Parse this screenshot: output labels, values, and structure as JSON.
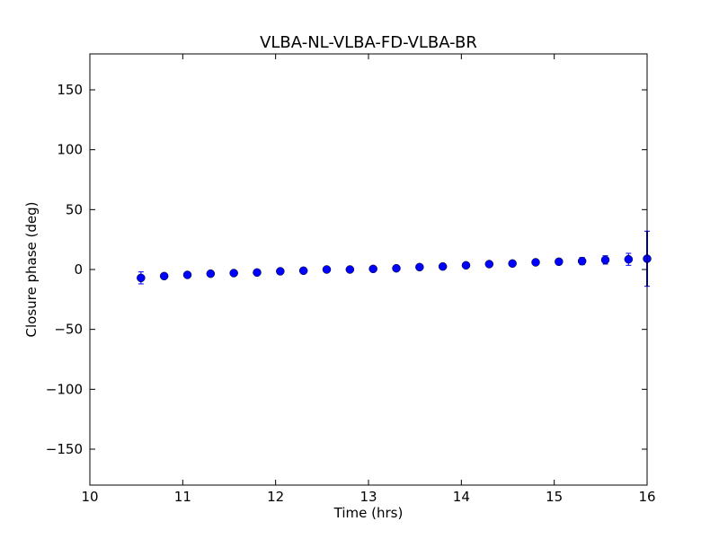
{
  "chart_data": {
    "type": "scatter",
    "title": "VLBA-NL-VLBA-FD-VLBA-BR",
    "xlabel": "Time (hrs)",
    "ylabel": "Closure phase (deg)",
    "xlim": [
      10,
      16
    ],
    "ylim": [
      -180,
      180
    ],
    "xticks": [
      10,
      11,
      12,
      13,
      14,
      15,
      16
    ],
    "xtick_labels": [
      "10",
      "11",
      "12",
      "13",
      "14",
      "15",
      "16"
    ],
    "yticks": [
      -150,
      -100,
      -50,
      0,
      50,
      100,
      150
    ],
    "ytick_labels": [
      "−150",
      "−100",
      "−50",
      "0",
      "50",
      "100",
      "150"
    ],
    "grid": false,
    "error_bars": true,
    "marker": "circle",
    "color": "#0000ff",
    "points": [
      {
        "x": 10.55,
        "y": -7,
        "err": 5
      },
      {
        "x": 10.8,
        "y": -5.5,
        "err": 2
      },
      {
        "x": 11.05,
        "y": -4.5,
        "err": 2
      },
      {
        "x": 11.3,
        "y": -3.5,
        "err": 2
      },
      {
        "x": 11.55,
        "y": -3,
        "err": 2
      },
      {
        "x": 11.8,
        "y": -2.5,
        "err": 2
      },
      {
        "x": 12.05,
        "y": -1.5,
        "err": 2
      },
      {
        "x": 12.3,
        "y": -1,
        "err": 2
      },
      {
        "x": 12.55,
        "y": 0,
        "err": 2
      },
      {
        "x": 12.8,
        "y": 0,
        "err": 2
      },
      {
        "x": 13.05,
        "y": 0.5,
        "err": 2
      },
      {
        "x": 13.3,
        "y": 1,
        "err": 2
      },
      {
        "x": 13.55,
        "y": 2,
        "err": 2
      },
      {
        "x": 13.8,
        "y": 2.5,
        "err": 2
      },
      {
        "x": 14.05,
        "y": 3.5,
        "err": 2
      },
      {
        "x": 14.3,
        "y": 4.5,
        "err": 2
      },
      {
        "x": 14.55,
        "y": 5,
        "err": 2
      },
      {
        "x": 14.8,
        "y": 6,
        "err": 2
      },
      {
        "x": 15.05,
        "y": 6.5,
        "err": 2.5
      },
      {
        "x": 15.3,
        "y": 7,
        "err": 3
      },
      {
        "x": 15.55,
        "y": 8,
        "err": 3.5
      },
      {
        "x": 15.8,
        "y": 8.5,
        "err": 5
      },
      {
        "x": 16.0,
        "y": 9,
        "err": 23
      }
    ]
  }
}
